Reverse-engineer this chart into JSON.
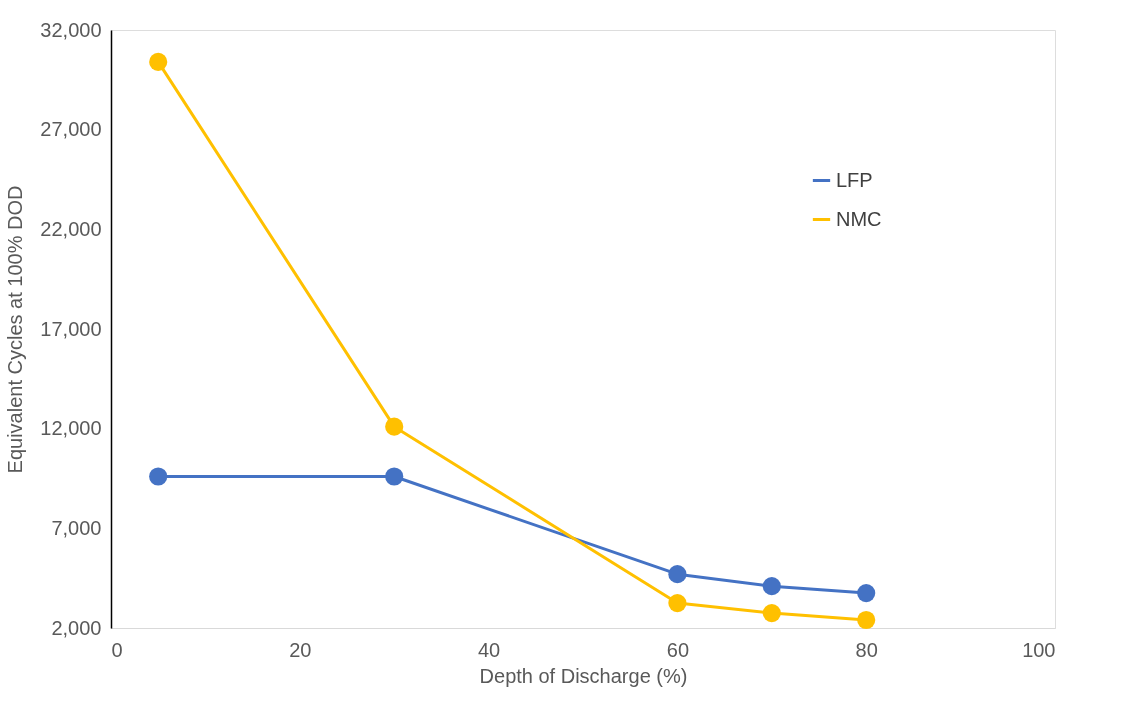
{
  "chart_data": {
    "type": "line",
    "xlabel": "Depth of Discharge (%)",
    "ylabel": "Equivalent Cycles at 100% DOD",
    "x": [
      5,
      30,
      60,
      70,
      80
    ],
    "series": [
      {
        "name": "LFP",
        "color": "#4472c4",
        "values": [
          9600,
          9600,
          4700,
          4100,
          3750
        ]
      },
      {
        "name": "NMC",
        "color": "#ffc000",
        "values": [
          30400,
          12100,
          3250,
          2750,
          2400
        ]
      }
    ],
    "xlim": [
      0,
      100
    ],
    "xticks": [
      0,
      20,
      40,
      60,
      80,
      100
    ],
    "ylim": [
      2000,
      32000
    ],
    "yticks": [
      {
        "value": 2000,
        "label": "2,000"
      },
      {
        "value": 7000,
        "label": "7,000"
      },
      {
        "value": 12000,
        "label": "12,000"
      },
      {
        "value": 17000,
        "label": "17,000"
      },
      {
        "value": 22000,
        "label": "22,000"
      },
      {
        "value": 27000,
        "label": "27,000"
      },
      {
        "value": 32000,
        "label": "32,000"
      }
    ],
    "grid": false,
    "legend": "top right",
    "marker": "circle",
    "line_style": "solid"
  }
}
